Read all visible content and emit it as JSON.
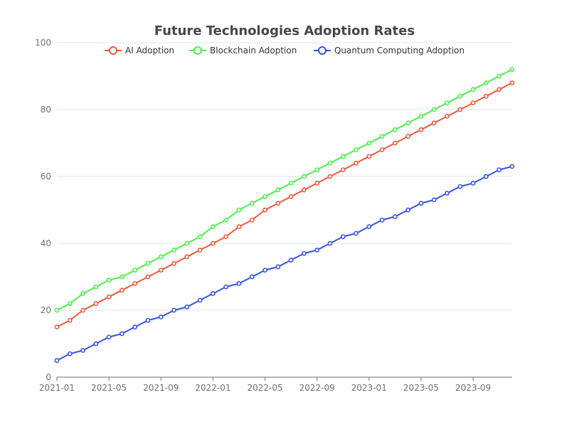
{
  "colors": {
    "ai": "#ee5a3c",
    "blockchain": "#4cf04c",
    "quantum": "#3553e6"
  },
  "chart_data": {
    "type": "line",
    "title": "Future Technologies Adoption Rates",
    "xlabel": "",
    "ylabel": "",
    "ylim": [
      0,
      100
    ],
    "yticks": [
      0,
      20,
      40,
      60,
      80,
      100
    ],
    "grid": true,
    "legend_position": "top-center",
    "x": [
      "2021-01",
      "2021-02",
      "2021-03",
      "2021-04",
      "2021-05",
      "2021-06",
      "2021-07",
      "2021-08",
      "2021-09",
      "2021-10",
      "2021-11",
      "2021-12",
      "2022-01",
      "2022-02",
      "2022-03",
      "2022-04",
      "2022-05",
      "2022-06",
      "2022-07",
      "2022-08",
      "2022-09",
      "2022-10",
      "2022-11",
      "2022-12",
      "2023-01",
      "2023-02",
      "2023-03",
      "2023-04",
      "2023-05",
      "2023-06",
      "2023-07",
      "2023-08",
      "2023-09",
      "2023-10",
      "2023-11",
      "2023-12"
    ],
    "xtick_labels": [
      "2021-01",
      "2021-05",
      "2021-09",
      "2022-01",
      "2022-05",
      "2022-09",
      "2023-01",
      "2023-05",
      "2023-09"
    ],
    "series": [
      {
        "name": "AI Adoption",
        "color": "#ee5a3c",
        "values": [
          15,
          17,
          20,
          22,
          24,
          26,
          28,
          30,
          32,
          34,
          36,
          38,
          40,
          42,
          45,
          47,
          50,
          52,
          54,
          56,
          58,
          60,
          62,
          64,
          66,
          68,
          70,
          72,
          74,
          76,
          78,
          80,
          82,
          84,
          86,
          88
        ]
      },
      {
        "name": "Blockchain Adoption",
        "color": "#4cf04c",
        "values": [
          20,
          22,
          25,
          27,
          29,
          30,
          32,
          34,
          36,
          38,
          40,
          42,
          45,
          47,
          50,
          52,
          54,
          56,
          58,
          60,
          62,
          64,
          66,
          68,
          70,
          72,
          74,
          76,
          78,
          80,
          82,
          84,
          86,
          88,
          90,
          92
        ]
      },
      {
        "name": "Quantum Computing Adoption",
        "color": "#3553e6",
        "values": [
          5,
          7,
          8,
          10,
          12,
          13,
          15,
          17,
          18,
          20,
          21,
          23,
          25,
          27,
          28,
          30,
          32,
          33,
          35,
          37,
          38,
          40,
          42,
          43,
          45,
          47,
          48,
          50,
          52,
          53,
          55,
          57,
          58,
          60,
          62,
          63
        ]
      }
    ]
  }
}
